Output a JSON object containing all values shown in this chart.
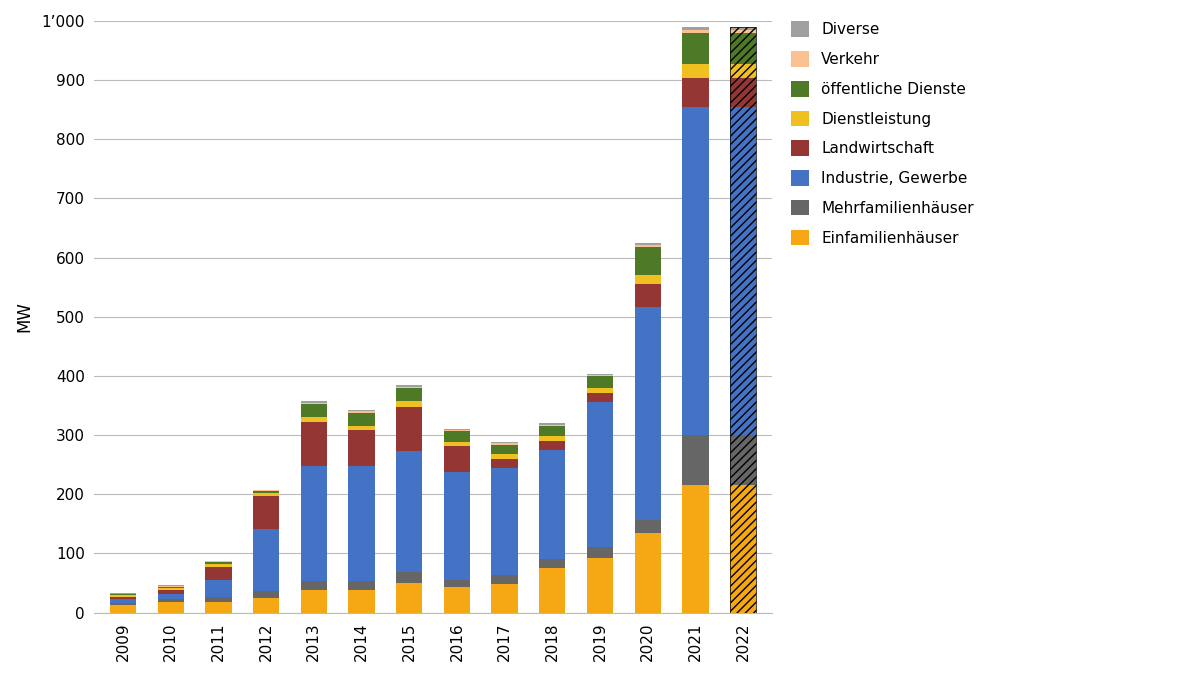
{
  "years": [
    "2009",
    "2010",
    "2011",
    "2012",
    "2013",
    "2014",
    "2015",
    "2016",
    "2017",
    "2018",
    "2019",
    "2020",
    "2021",
    "2022"
  ],
  "legend_labels": [
    "Einfamilienhäuser",
    "Mehrfamilienhäuser",
    "Industrie, Gewerbe",
    "Landwirtschaft",
    "Dienstleistung",
    "öffentliche Dienste",
    "Verkehr",
    "Diverse"
  ],
  "colors": [
    "#f5a813",
    "#666666",
    "#4472c4",
    "#943634",
    "#f0c020",
    "#4e7a28",
    "#fac090",
    "#a0a0a0"
  ],
  "cat_data": [
    [
      13,
      18,
      18,
      25,
      38,
      38,
      50,
      43,
      48,
      75,
      93,
      135,
      215,
      215
    ],
    [
      3,
      5,
      8,
      12,
      15,
      15,
      18,
      12,
      15,
      15,
      18,
      22,
      85,
      85
    ],
    [
      7,
      9,
      30,
      105,
      195,
      195,
      205,
      182,
      182,
      185,
      245,
      360,
      555,
      555
    ],
    [
      4,
      7,
      22,
      55,
      75,
      60,
      75,
      45,
      15,
      15,
      16,
      38,
      48,
      48
    ],
    [
      2,
      3,
      4,
      5,
      8,
      8,
      10,
      7,
      8,
      8,
      8,
      15,
      25,
      25
    ],
    [
      2,
      2,
      4,
      4,
      22,
      22,
      22,
      18,
      16,
      18,
      20,
      48,
      52,
      52
    ],
    [
      1,
      1,
      1,
      1,
      2,
      2,
      2,
      2,
      2,
      2,
      2,
      3,
      5,
      5
    ],
    [
      1,
      1,
      1,
      1,
      2,
      2,
      2,
      2,
      2,
      2,
      2,
      3,
      5,
      5
    ]
  ],
  "ylabel": "MW",
  "ylim": [
    0,
    1000
  ],
  "yticks": [
    0,
    100,
    200,
    300,
    400,
    500,
    600,
    700,
    800,
    900,
    1000
  ],
  "ytick_labels": [
    "0",
    "100",
    "200",
    "300",
    "400",
    "500",
    "600",
    "700",
    "800",
    "900",
    "1’000"
  ],
  "background_color": "#ffffff",
  "grid_color": "#bbbbbb",
  "bar_width": 0.55
}
